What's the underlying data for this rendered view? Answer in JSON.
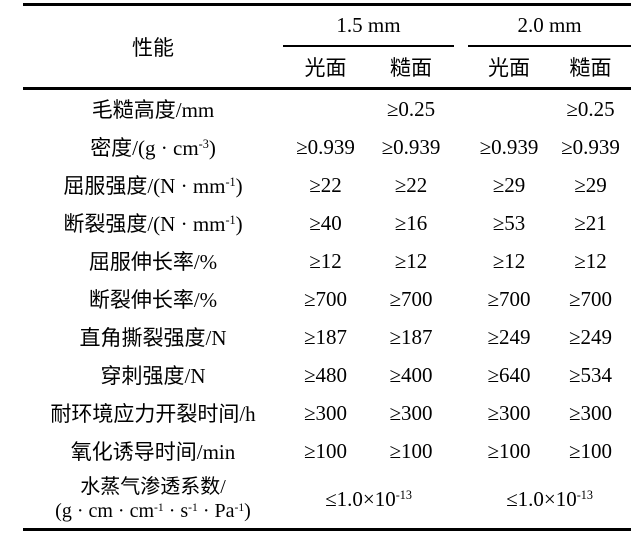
{
  "table": {
    "header": {
      "property_label": "性能",
      "groups": [
        {
          "label": "1.5 mm"
        },
        {
          "label": "2.0 mm"
        }
      ],
      "subcols": [
        "光面",
        "糙面",
        "光面",
        "糙面"
      ]
    },
    "rows": [
      {
        "label": "毛糙高度/mm",
        "cells": [
          "",
          "≥0.25",
          "",
          "≥0.25"
        ]
      },
      {
        "label": "密度/(g · cm^{-3})",
        "cells": [
          "≥0.939",
          "≥0.939",
          "≥0.939",
          "≥0.939"
        ]
      },
      {
        "label": "屈服强度/(N · mm^{-1})",
        "cells": [
          "≥22",
          "≥22",
          "≥29",
          "≥29"
        ]
      },
      {
        "label": "断裂强度/(N · mm^{-1})",
        "cells": [
          "≥40",
          "≥16",
          "≥53",
          "≥21"
        ]
      },
      {
        "label": "屈服伸长率/%",
        "cells": [
          "≥12",
          "≥12",
          "≥12",
          "≥12"
        ]
      },
      {
        "label": "断裂伸长率/%",
        "cells": [
          "≥700",
          "≥700",
          "≥700",
          "≥700"
        ]
      },
      {
        "label": "直角撕裂强度/N",
        "cells": [
          "≥187",
          "≥187",
          "≥249",
          "≥249"
        ]
      },
      {
        "label": "穿刺强度/N",
        "cells": [
          "≥480",
          "≥400",
          "≥640",
          "≥534"
        ]
      },
      {
        "label": "耐环境应力开裂时间/h",
        "cells": [
          "≥300",
          "≥300",
          "≥300",
          "≥300"
        ]
      },
      {
        "label": "氧化诱导时间/min",
        "cells": [
          "≥100",
          "≥100",
          "≥100",
          "≥100"
        ]
      },
      {
        "label": "水蒸气渗透系数/",
        "label2": "(g · cm · cm^{-1} · s^{-1} · Pa^{-1})",
        "merged_cells": [
          "≤1.0×10^{-13}",
          "≤1.0×10^{-13}"
        ]
      }
    ]
  },
  "chart_data": {
    "type": "table",
    "columns": [
      "性能",
      "1.5 mm 光面",
      "1.5 mm 糙面",
      "2.0 mm 光面",
      "2.0 mm 糙面"
    ],
    "rows": [
      [
        "毛糙高度/mm",
        "",
        "≥0.25",
        "",
        "≥0.25"
      ],
      [
        "密度/(g·cm⁻³)",
        "≥0.939",
        "≥0.939",
        "≥0.939",
        "≥0.939"
      ],
      [
        "屈服强度/(N·mm⁻¹)",
        "≥22",
        "≥22",
        "≥29",
        "≥29"
      ],
      [
        "断裂强度/(N·mm⁻¹)",
        "≥40",
        "≥16",
        "≥53",
        "≥21"
      ],
      [
        "屈服伸长率/%",
        "≥12",
        "≥12",
        "≥12",
        "≥12"
      ],
      [
        "断裂伸长率/%",
        "≥700",
        "≥700",
        "≥700",
        "≥700"
      ],
      [
        "直角撕裂强度/N",
        "≥187",
        "≥187",
        "≥249",
        "≥249"
      ],
      [
        "穿刺强度/N",
        "≥480",
        "≥400",
        "≥640",
        "≥534"
      ],
      [
        "耐环境应力开裂时间/h",
        "≥300",
        "≥300",
        "≥300",
        "≥300"
      ],
      [
        "氧化诱导时间/min",
        "≥100",
        "≥100",
        "≥100",
        "≥100"
      ],
      [
        "水蒸气渗透系数/(g·cm·cm⁻¹·s⁻¹·Pa⁻¹)",
        "≤1.0×10⁻¹³",
        "≤1.0×10⁻¹³",
        "≤1.0×10⁻¹³",
        "≤1.0×10⁻¹³"
      ]
    ]
  },
  "colors": {
    "text": "#000000",
    "background": "#ffffff",
    "rule": "#000000"
  }
}
